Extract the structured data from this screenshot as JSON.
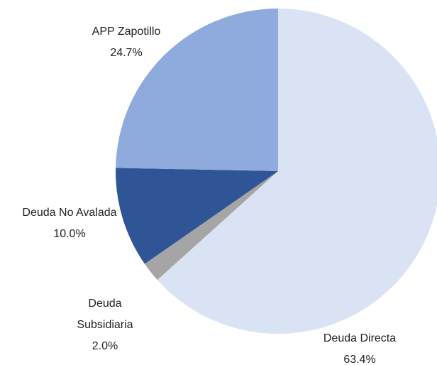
{
  "chart_data": {
    "type": "pie",
    "categories": [
      "Deuda Directa",
      "Deuda Subsidiaria",
      "Deuda No Avalada",
      "APP Zapotillo"
    ],
    "values": [
      63.4,
      2.0,
      10.0,
      24.7
    ],
    "value_labels": [
      "63.4%",
      "2.0%",
      "10.0%",
      "24.7%"
    ],
    "colors": [
      "#dae3f3",
      "#a5a5a5",
      "#2f5597",
      "#8faadc"
    ]
  }
}
